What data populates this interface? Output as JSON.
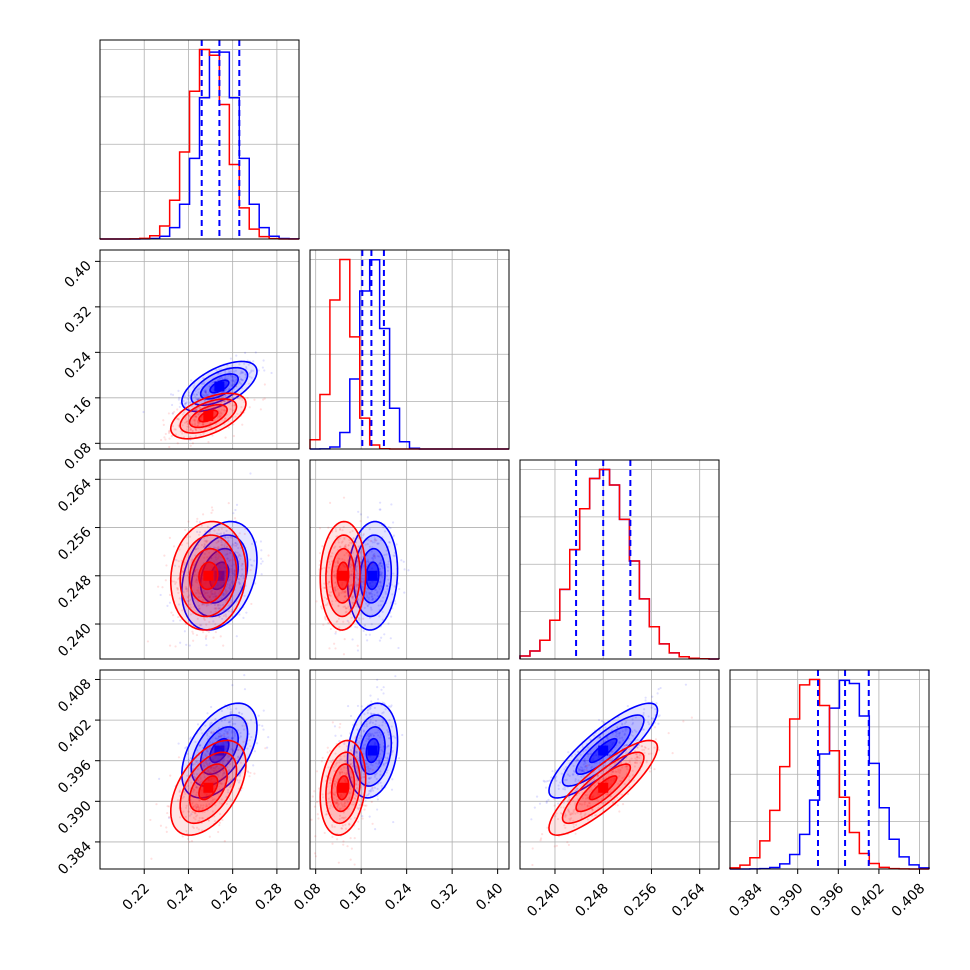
{
  "chart_data": {
    "type": "corner",
    "title": "",
    "n_params": 4,
    "series": [
      {
        "name": "",
        "color": "#0000ff",
        "means": [
          0.254,
          0.18,
          0.248,
          0.3975
        ],
        "sds": [
          0.0085,
          0.022,
          0.0045,
          0.0035
        ],
        "corr": [
          [
            1,
            0.6,
            0.3,
            0.5
          ],
          [
            0.6,
            1,
            0.1,
            0.2
          ],
          [
            0.3,
            0.1,
            1,
            0.85
          ],
          [
            0.5,
            0.2,
            0.85,
            1
          ]
        ]
      },
      {
        "name": "",
        "color": "#ff0000",
        "means": [
          0.249,
          0.128,
          0.248,
          0.392
        ],
        "sds": [
          0.0085,
          0.02,
          0.0045,
          0.0035
        ],
        "corr": [
          [
            1,
            0.55,
            0.1,
            0.5
          ],
          [
            0.55,
            1,
            0.05,
            0.2
          ],
          [
            0.1,
            0.05,
            1,
            0.85
          ],
          [
            0.5,
            0.2,
            0.85,
            1
          ]
        ]
      }
    ],
    "quantile_lines": {
      "color": "#0000ff",
      "style": "dashed",
      "values": [
        [
          0.246,
          0.254,
          0.263
        ],
        [
          0.162,
          0.178,
          0.2
        ],
        [
          0.2435,
          0.248,
          0.2525
        ],
        [
          0.393,
          0.397,
          0.4005
        ]
      ]
    },
    "ranges": [
      [
        0.2,
        0.29
      ],
      [
        0.07,
        0.42
      ],
      [
        0.2342,
        0.2672
      ],
      [
        0.38,
        0.4094
      ]
    ],
    "ticks": [
      [
        "0.22",
        "0.24",
        "0.26",
        "0.28"
      ],
      [
        "0.08",
        "0.16",
        "0.24",
        "0.32",
        "0.40"
      ],
      [
        "0.240",
        "0.248",
        "0.256",
        "0.264"
      ],
      [
        "0.384",
        "0.390",
        "0.396",
        "0.402",
        "0.408"
      ]
    ],
    "grid": true,
    "legend": "none"
  }
}
